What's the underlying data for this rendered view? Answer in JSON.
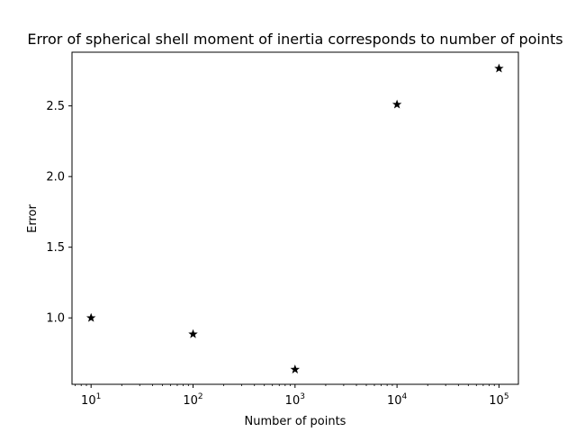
{
  "chart_data": {
    "type": "scatter",
    "title": "Error of spherical shell moment of inertia corresponds to number of points",
    "xlabel": "Number of points",
    "ylabel": "Error",
    "xscale": "log",
    "xlim": [
      6.5,
      155000
    ],
    "ylim": [
      0.53,
      2.88
    ],
    "grid": false,
    "marker": "star",
    "color": "#000000",
    "x": [
      10,
      100,
      1000,
      10000,
      100000
    ],
    "y": [
      1.0,
      0.885,
      0.635,
      2.51,
      2.765
    ],
    "x_ticks": [
      {
        "value": 10,
        "base": "10",
        "exp": "1"
      },
      {
        "value": 100,
        "base": "10",
        "exp": "2"
      },
      {
        "value": 1000,
        "base": "10",
        "exp": "3"
      },
      {
        "value": 10000,
        "base": "10",
        "exp": "4"
      },
      {
        "value": 100000,
        "base": "10",
        "exp": "5"
      }
    ],
    "y_ticks": [
      {
        "value": 1.0,
        "label": "1.0"
      },
      {
        "value": 1.5,
        "label": "1.5"
      },
      {
        "value": 2.0,
        "label": "2.0"
      },
      {
        "value": 2.5,
        "label": "2.5"
      }
    ]
  }
}
